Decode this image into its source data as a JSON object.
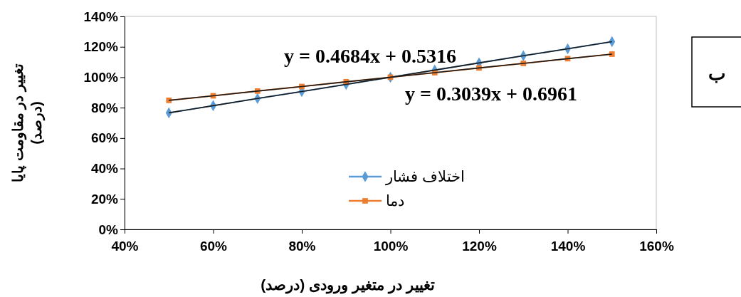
{
  "chart_data": {
    "type": "line",
    "xlabel": "تغییر در متغیر ورودی (درصد)",
    "ylabel": "تغییر در مقاومت پایا (درصد)",
    "x": [
      50,
      60,
      70,
      80,
      90,
      100,
      110,
      120,
      130,
      140,
      150
    ],
    "series": [
      {
        "name": "اختلاف فشار",
        "color": "#5b9bd5",
        "marker": "diamond",
        "values": [
          76.6,
          81.3,
          86.0,
          90.6,
          95.3,
          100,
          104.7,
          109.4,
          114.1,
          118.7,
          123.4
        ]
      },
      {
        "name": "دما",
        "color": "#ed7d31",
        "marker": "square",
        "values": [
          84.8,
          87.8,
          90.9,
          93.9,
          97.0,
          100,
          103.0,
          106.1,
          109.1,
          112.2,
          115.2
        ]
      },
      {
        "type": "line",
        "color": "#1a1a1a",
        "marker": "none",
        "values": [
          76.6,
          81.3,
          86.0,
          90.6,
          95.3,
          100,
          104.7,
          109.4,
          114.1,
          118.7,
          123.4
        ]
      },
      {
        "type": "line",
        "color": "#1a1a1a",
        "marker": "none",
        "values": [
          84.8,
          87.8,
          90.9,
          93.9,
          97.0,
          100,
          103.0,
          106.1,
          109.1,
          112.2,
          115.2
        ]
      }
    ],
    "xlim": [
      40,
      160
    ],
    "xticks": [
      {
        "value": 40,
        "label": "40%"
      },
      {
        "value": 60,
        "label": "60%"
      },
      {
        "value": 80,
        "label": "80%"
      },
      {
        "value": 100,
        "label": "100%"
      },
      {
        "value": 120,
        "label": "120%"
      },
      {
        "value": 140,
        "label": "140%"
      },
      {
        "value": 160,
        "label": "160%"
      }
    ],
    "ylim": [
      0,
      140
    ],
    "yticks": [
      {
        "value": 0,
        "label": "0%"
      },
      {
        "value": 20,
        "label": "20%"
      },
      {
        "value": 40,
        "label": "40%"
      },
      {
        "value": 60,
        "label": "60%"
      },
      {
        "value": 80,
        "label": "80%"
      },
      {
        "value": 100,
        "label": "100%"
      },
      {
        "value": 120,
        "label": "120%"
      },
      {
        "value": 140,
        "label": "140%"
      }
    ],
    "grid": false,
    "legend": "bottom",
    "annotations": [
      "y = 0.4684x + 0.5316",
      "y = 0.3039x + 0.6961",
      "ب"
    ]
  }
}
